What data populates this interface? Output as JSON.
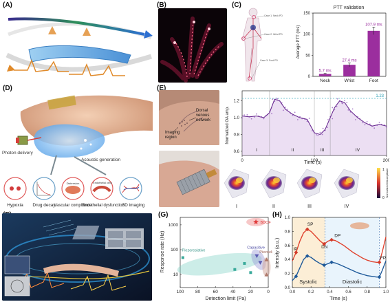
{
  "labels": [
    "(A)",
    "(B)",
    "(C)",
    "(D)",
    "(E)",
    "(F)",
    "(G)",
    "(H)"
  ],
  "panel_c": {
    "figure_labels": [
      "Case 1: Neck PD",
      "Case 2: Wrist PD",
      "Case 3: Foot PD"
    ],
    "chart_data": {
      "type": "bar",
      "title": "PTT validation",
      "ylabel": "Average PTT (ms)",
      "categories": [
        "Neck",
        "Wrist",
        "Foot"
      ],
      "values": [
        5.7,
        27.4,
        107.9
      ],
      "value_labels": [
        "5.7 ms",
        "27.4 ms",
        "107.9 ms"
      ],
      "errors": [
        1.5,
        4.5,
        9
      ],
      "ylim": [
        0,
        150
      ],
      "yticks": [
        0,
        50,
        100,
        150
      ],
      "bar_color": "#9b2e9e"
    }
  },
  "panel_d": {
    "labels": [
      "Photon delivery",
      "Acoustic generation"
    ],
    "circles": [
      "Hypoxia",
      "Drug decay",
      "Vascular compliance",
      "Endothelial dysfunction",
      "3D imaging"
    ],
    "inner": [
      "Distension",
      "Endothelial cells"
    ]
  },
  "panel_e": {
    "photo_labels": [
      "Dorsal venous network",
      "Imaging region"
    ],
    "chart_data": {
      "type": "line",
      "xlabel": "Time (s)",
      "ylabel": "Normalized OA amp.",
      "xlim": [
        0,
        200
      ],
      "ylim": [
        0.55,
        1.32
      ],
      "xticks": [
        0,
        100,
        200
      ],
      "yticks": [
        0.6,
        0.8,
        1.0,
        1.2
      ],
      "ref_line": 1.23,
      "ref_label": "1.23",
      "phases": [
        "I",
        "II",
        "III",
        "IV"
      ],
      "line_color": "#6a2c91",
      "x": [
        0,
        10,
        20,
        30,
        38,
        45,
        52,
        60,
        70,
        80,
        90,
        100,
        108,
        115,
        122,
        128,
        135,
        142,
        150,
        160,
        170,
        180,
        190,
        200
      ],
      "y": [
        1.02,
        1.01,
        1.02,
        1.0,
        1.06,
        1.22,
        1.2,
        1.1,
        1.04,
        1.0,
        0.98,
        0.82,
        0.8,
        0.86,
        1.0,
        1.12,
        1.2,
        1.18,
        1.08,
        1.0,
        0.94,
        0.9,
        0.92,
        0.9
      ]
    },
    "images": [
      "I",
      "II",
      "III",
      "IV"
    ],
    "colorbar_label": "Normalized OA amplitude",
    "colorbar_ticks": [
      "1",
      "0"
    ]
  },
  "panel_g": {
    "chart_data": {
      "type": "scatter",
      "xlabel": "Detection limit (Pa)",
      "ylabel": "Response rate (Hz)",
      "xlim": [
        100,
        0
      ],
      "xticks": [
        100,
        80,
        60,
        40,
        20,
        0
      ],
      "ylim": [
        3,
        2000
      ],
      "yscale": "log",
      "yticks": [
        10,
        100,
        1000
      ],
      "ytick_labels": [
        "10",
        "100",
        "1000"
      ],
      "groups": [
        {
          "name": "Piezoresistive",
          "color": "#3aaa9b",
          "points": [
            [
              97,
              48
            ],
            [
              38,
              16
            ],
            [
              27,
              28
            ],
            [
              20,
              12
            ]
          ]
        },
        {
          "name": "Capacitive",
          "color": "#5a5ab2",
          "points": [
            [
              13,
              56
            ],
            [
              9,
              30
            ]
          ]
        },
        {
          "name": "Piezoelectric",
          "color": "#b07a6c",
          "points": [
            [
              2,
              40
            ],
            [
              2,
              10
            ]
          ]
        },
        {
          "name": "BDOF",
          "color": "#e03a3a",
          "points": [
            [
              14,
              1300
            ]
          ]
        }
      ]
    }
  },
  "panel_h": {
    "chart_data": {
      "type": "line",
      "xlabel": "Time (s)",
      "ylabel": "Intensity (a.u.)",
      "xlim": [
        0,
        1.0
      ],
      "xticks": [
        0.0,
        0.2,
        0.4,
        0.6,
        0.8,
        1.0
      ],
      "xtick_labels": [
        "0.0",
        "0.2",
        "0.4",
        "0.6",
        "0.8",
        "1.0"
      ],
      "ylim": [
        0,
        1.0
      ],
      "yticks": [
        0.0,
        0.2,
        0.4,
        0.6,
        0.8,
        1.0
      ],
      "ytick_labels": [
        "0.0",
        "0.2",
        "0.4",
        "0.6",
        "0.8",
        "1.0"
      ],
      "annotations": [
        "IP",
        "SP",
        "DN",
        "DP",
        "FP"
      ],
      "regions": [
        "Systolic",
        "Diastolic"
      ],
      "series": [
        {
          "color": "#e0432f",
          "x": [
            0,
            0.04,
            0.08,
            0.12,
            0.16,
            0.2,
            0.25,
            0.3,
            0.34,
            0.38,
            0.42,
            0.46,
            0.5,
            0.55,
            0.6,
            0.65,
            0.7,
            0.75,
            0.8,
            0.85,
            0.9,
            0.93,
            0.96,
            1.0
          ],
          "y": [
            0.38,
            0.5,
            0.66,
            0.78,
            0.83,
            0.8,
            0.73,
            0.66,
            0.62,
            0.66,
            0.68,
            0.67,
            0.64,
            0.6,
            0.55,
            0.5,
            0.46,
            0.42,
            0.39,
            0.37,
            0.36,
            0.36,
            0.5,
            0.72
          ]
        },
        {
          "color": "#1f5a9a",
          "x": [
            0,
            0.04,
            0.08,
            0.12,
            0.16,
            0.2,
            0.25,
            0.3,
            0.34,
            0.38,
            0.42,
            0.46,
            0.5,
            0.55,
            0.6,
            0.65,
            0.7,
            0.75,
            0.8,
            0.85,
            0.9,
            0.93,
            0.96,
            1.0
          ],
          "y": [
            0.1,
            0.16,
            0.28,
            0.4,
            0.45,
            0.43,
            0.38,
            0.34,
            0.32,
            0.34,
            0.36,
            0.35,
            0.33,
            0.3,
            0.27,
            0.24,
            0.21,
            0.19,
            0.17,
            0.16,
            0.15,
            0.15,
            0.24,
            0.38
          ]
        }
      ],
      "markers": {
        "red": [
          [
            0.04,
            0.5
          ],
          [
            0.16,
            0.83
          ],
          [
            0.34,
            0.62
          ],
          [
            0.42,
            0.68
          ],
          [
            0.93,
            0.36
          ]
        ],
        "blue": [
          [
            0.04,
            0.16
          ],
          [
            0.16,
            0.45
          ],
          [
            0.34,
            0.32
          ],
          [
            0.42,
            0.36
          ],
          [
            0.93,
            0.15
          ]
        ]
      },
      "divider_x": 0.35,
      "end_x": 0.93
    }
  },
  "colors": {
    "purple": "#9b2e9e",
    "teal": "#3aaa9b",
    "red": "#e03a3a"
  }
}
